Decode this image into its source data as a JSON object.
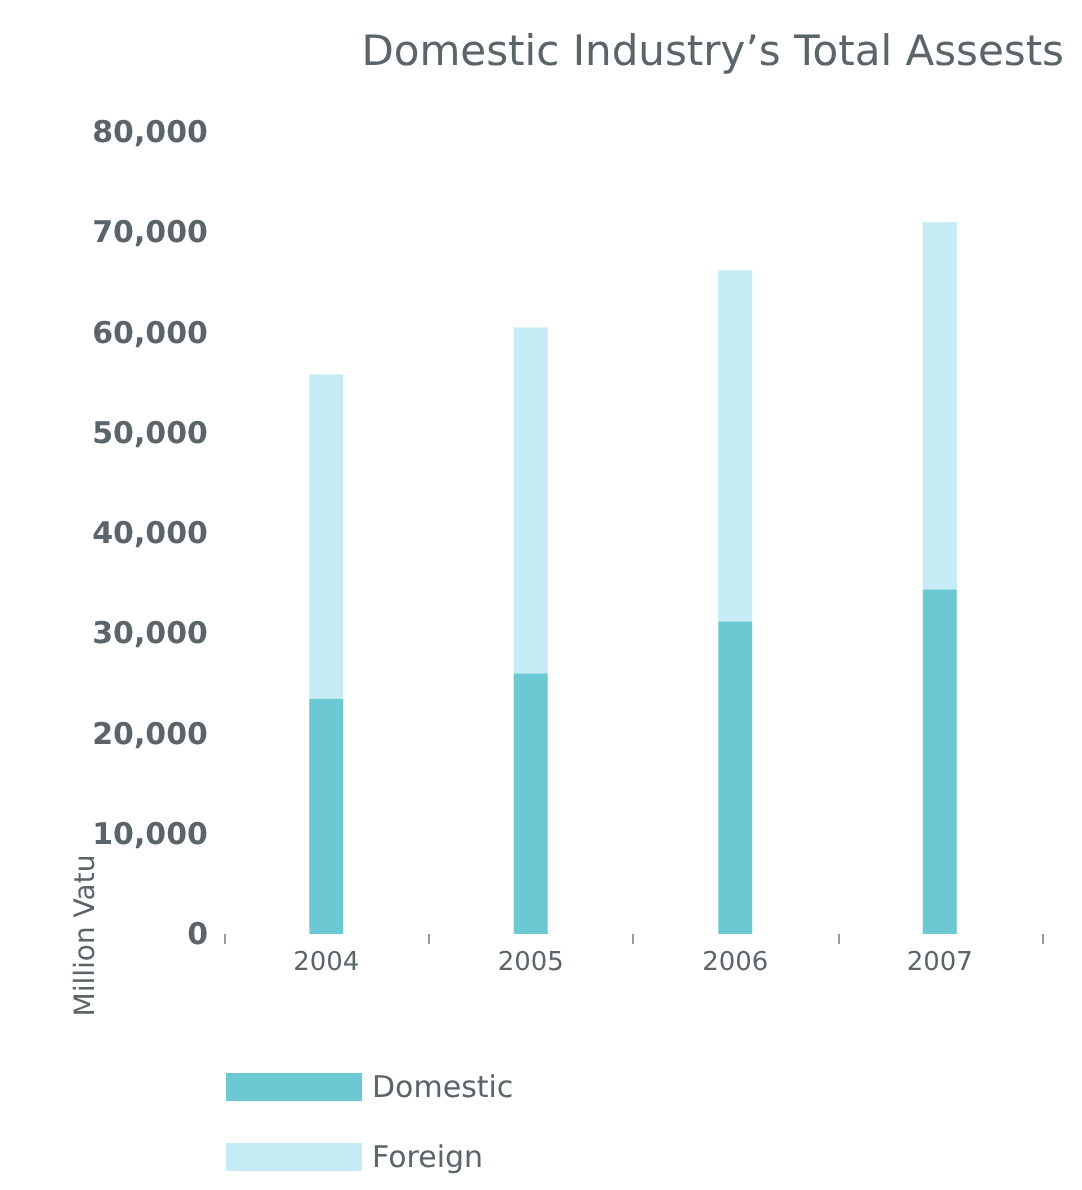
{
  "chart_data": {
    "type": "bar",
    "title": "Domestic Industry’s Total Assests",
    "ylabel": "Million Vatu",
    "categories": [
      "2004",
      "2005",
      "2006",
      "2007"
    ],
    "stacked": true,
    "series": [
      {
        "name": "Domestic",
        "color": "#6cc9d3",
        "values": [
          23500,
          26000,
          31200,
          34400
        ]
      },
      {
        "name": "Foreign",
        "color": "#c5ebf4",
        "values": [
          32300,
          34500,
          35000,
          36600
        ]
      }
    ],
    "ylim": [
      0,
      80000
    ],
    "yticks": [
      0,
      {
        "value": 10000,
        "label": "10,000"
      },
      {
        "value": 20000,
        "label": "20,000"
      },
      {
        "value": 30000,
        "label": "30,000"
      },
      {
        "value": 40000,
        "label": "40,000"
      },
      {
        "value": 50000,
        "label": "50,000"
      },
      {
        "value": 60000,
        "label": "60,000"
      },
      {
        "value": 70000,
        "label": "70,000"
      },
      {
        "value": 80000,
        "label": "80,000"
      }
    ],
    "grid": false,
    "legend": "bottom left"
  }
}
